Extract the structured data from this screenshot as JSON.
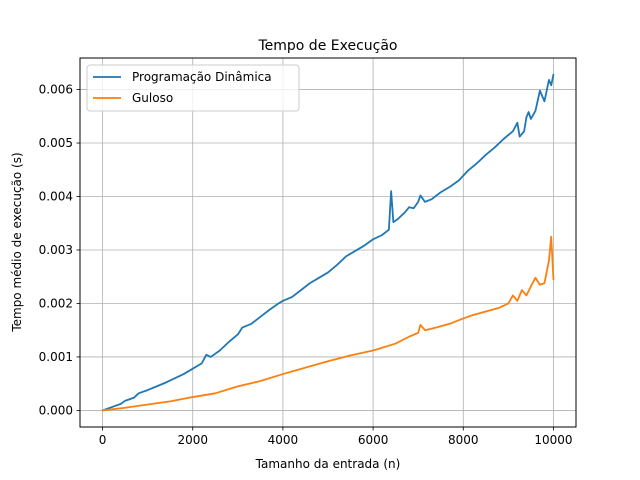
{
  "chart_data": {
    "type": "line",
    "title": "Tempo de Execução",
    "xlabel": "Tamanho da entrada (n)",
    "ylabel": "Tempo médio de execução (s)",
    "xlim": [
      -500,
      10500
    ],
    "ylim": [
      -0.00031,
      0.00659
    ],
    "xticks": [
      0,
      2000,
      4000,
      6000,
      8000,
      10000
    ],
    "xtick_labels": [
      "0",
      "2000",
      "4000",
      "6000",
      "8000",
      "10000"
    ],
    "yticks": [
      0,
      0.001,
      0.002,
      0.003,
      0.004,
      0.005,
      0.006
    ],
    "ytick_labels": [
      "0.000",
      "0.001",
      "0.002",
      "0.003",
      "0.004",
      "0.005",
      "0.006"
    ],
    "grid": true,
    "legend_position": "top-left",
    "series": [
      {
        "name": "Programação Dinâmica",
        "color": "#1f77b4",
        "points": [
          [
            0,
            0
          ],
          [
            200,
            6e-05
          ],
          [
            400,
            0.00012
          ],
          [
            500,
            0.00018
          ],
          [
            700,
            0.00024
          ],
          [
            800,
            0.00032
          ],
          [
            1000,
            0.00038
          ],
          [
            1200,
            0.00045
          ],
          [
            1400,
            0.00052
          ],
          [
            1600,
            0.0006
          ],
          [
            1800,
            0.00068
          ],
          [
            2000,
            0.00078
          ],
          [
            2200,
            0.00088
          ],
          [
            2300,
            0.00104
          ],
          [
            2400,
            0.001
          ],
          [
            2600,
            0.00112
          ],
          [
            2800,
            0.00128
          ],
          [
            3000,
            0.00142
          ],
          [
            3100,
            0.00155
          ],
          [
            3300,
            0.00162
          ],
          [
            3500,
            0.00175
          ],
          [
            3700,
            0.00188
          ],
          [
            3900,
            0.002
          ],
          [
            4000,
            0.00205
          ],
          [
            4200,
            0.00212
          ],
          [
            4400,
            0.00225
          ],
          [
            4600,
            0.00238
          ],
          [
            4800,
            0.00248
          ],
          [
            5000,
            0.00258
          ],
          [
            5200,
            0.00272
          ],
          [
            5400,
            0.00288
          ],
          [
            5600,
            0.00298
          ],
          [
            5800,
            0.00308
          ],
          [
            6000,
            0.0032
          ],
          [
            6200,
            0.00328
          ],
          [
            6350,
            0.00338
          ],
          [
            6400,
            0.0041
          ],
          [
            6450,
            0.00352
          ],
          [
            6550,
            0.00358
          ],
          [
            6700,
            0.0037
          ],
          [
            6800,
            0.0038
          ],
          [
            6900,
            0.00378
          ],
          [
            7000,
            0.0039
          ],
          [
            7050,
            0.00402
          ],
          [
            7150,
            0.0039
          ],
          [
            7300,
            0.00395
          ],
          [
            7500,
            0.00408
          ],
          [
            7700,
            0.00418
          ],
          [
            7900,
            0.0043
          ],
          [
            8100,
            0.00448
          ],
          [
            8300,
            0.00462
          ],
          [
            8500,
            0.00478
          ],
          [
            8700,
            0.00492
          ],
          [
            8900,
            0.00508
          ],
          [
            9100,
            0.00522
          ],
          [
            9200,
            0.00538
          ],
          [
            9250,
            0.00512
          ],
          [
            9350,
            0.00522
          ],
          [
            9400,
            0.00548
          ],
          [
            9450,
            0.00558
          ],
          [
            9500,
            0.00545
          ],
          [
            9600,
            0.0056
          ],
          [
            9700,
            0.00598
          ],
          [
            9800,
            0.00578
          ],
          [
            9900,
            0.00618
          ],
          [
            9950,
            0.00608
          ],
          [
            10000,
            0.00628
          ]
        ]
      },
      {
        "name": "Guloso",
        "color": "#ff7f0e",
        "points": [
          [
            0,
            0
          ],
          [
            500,
            5e-05
          ],
          [
            1000,
            0.00011
          ],
          [
            1500,
            0.00017
          ],
          [
            2000,
            0.00025
          ],
          [
            2500,
            0.00032
          ],
          [
            3000,
            0.00045
          ],
          [
            3500,
            0.00055
          ],
          [
            4000,
            0.00068
          ],
          [
            4500,
            0.0008
          ],
          [
            5000,
            0.00092
          ],
          [
            5500,
            0.00103
          ],
          [
            6000,
            0.00112
          ],
          [
            6500,
            0.00125
          ],
          [
            6800,
            0.00138
          ],
          [
            7000,
            0.00145
          ],
          [
            7050,
            0.0016
          ],
          [
            7150,
            0.0015
          ],
          [
            7400,
            0.00155
          ],
          [
            7700,
            0.00162
          ],
          [
            8000,
            0.00172
          ],
          [
            8200,
            0.00178
          ],
          [
            8500,
            0.00185
          ],
          [
            8800,
            0.00192
          ],
          [
            9000,
            0.002
          ],
          [
            9100,
            0.00215
          ],
          [
            9200,
            0.00205
          ],
          [
            9300,
            0.00225
          ],
          [
            9400,
            0.00215
          ],
          [
            9500,
            0.00232
          ],
          [
            9600,
            0.00248
          ],
          [
            9700,
            0.00235
          ],
          [
            9800,
            0.00238
          ],
          [
            9900,
            0.0028
          ],
          [
            9950,
            0.00325
          ],
          [
            10000,
            0.00245
          ]
        ]
      }
    ]
  }
}
